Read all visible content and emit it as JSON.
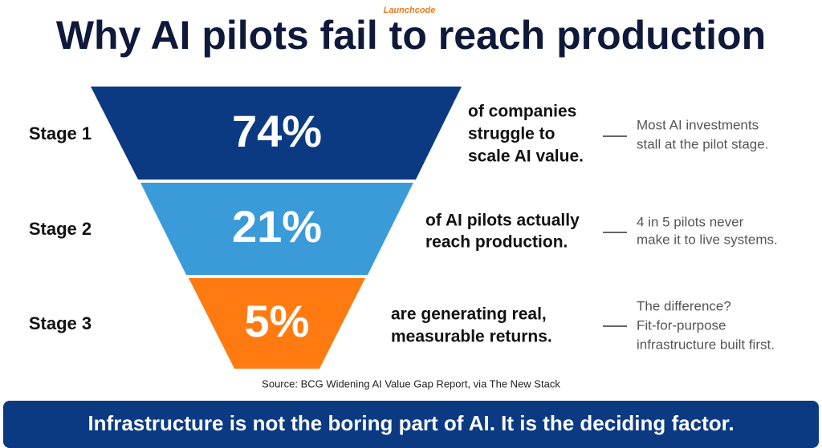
{
  "logo": "Launchcode",
  "title": "Why AI pilots fail to reach production",
  "stages": [
    {
      "label": "Stage 1",
      "value": "74%",
      "description": [
        "of companies",
        "struggle to",
        "scale AI value."
      ],
      "note": [
        "Most AI investments",
        "stall at the pilot stage."
      ]
    },
    {
      "label": "Stage 2",
      "value": "21%",
      "description": [
        "of AI pilots actually",
        "reach production."
      ],
      "note": [
        "4 in 5 pilots never",
        "make it to live systems."
      ]
    },
    {
      "label": "Stage 3",
      "value": "5%",
      "description": [
        "are generating real,",
        "measurable returns."
      ],
      "note": [
        "The difference?",
        "Fit-for-purpose",
        "infrastructure built first."
      ]
    }
  ],
  "source": "Source: BCG Widening AI Value Gap Report, via The New Stack",
  "banner": "Infrastructure is not the boring part of AI. It is the deciding factor."
}
